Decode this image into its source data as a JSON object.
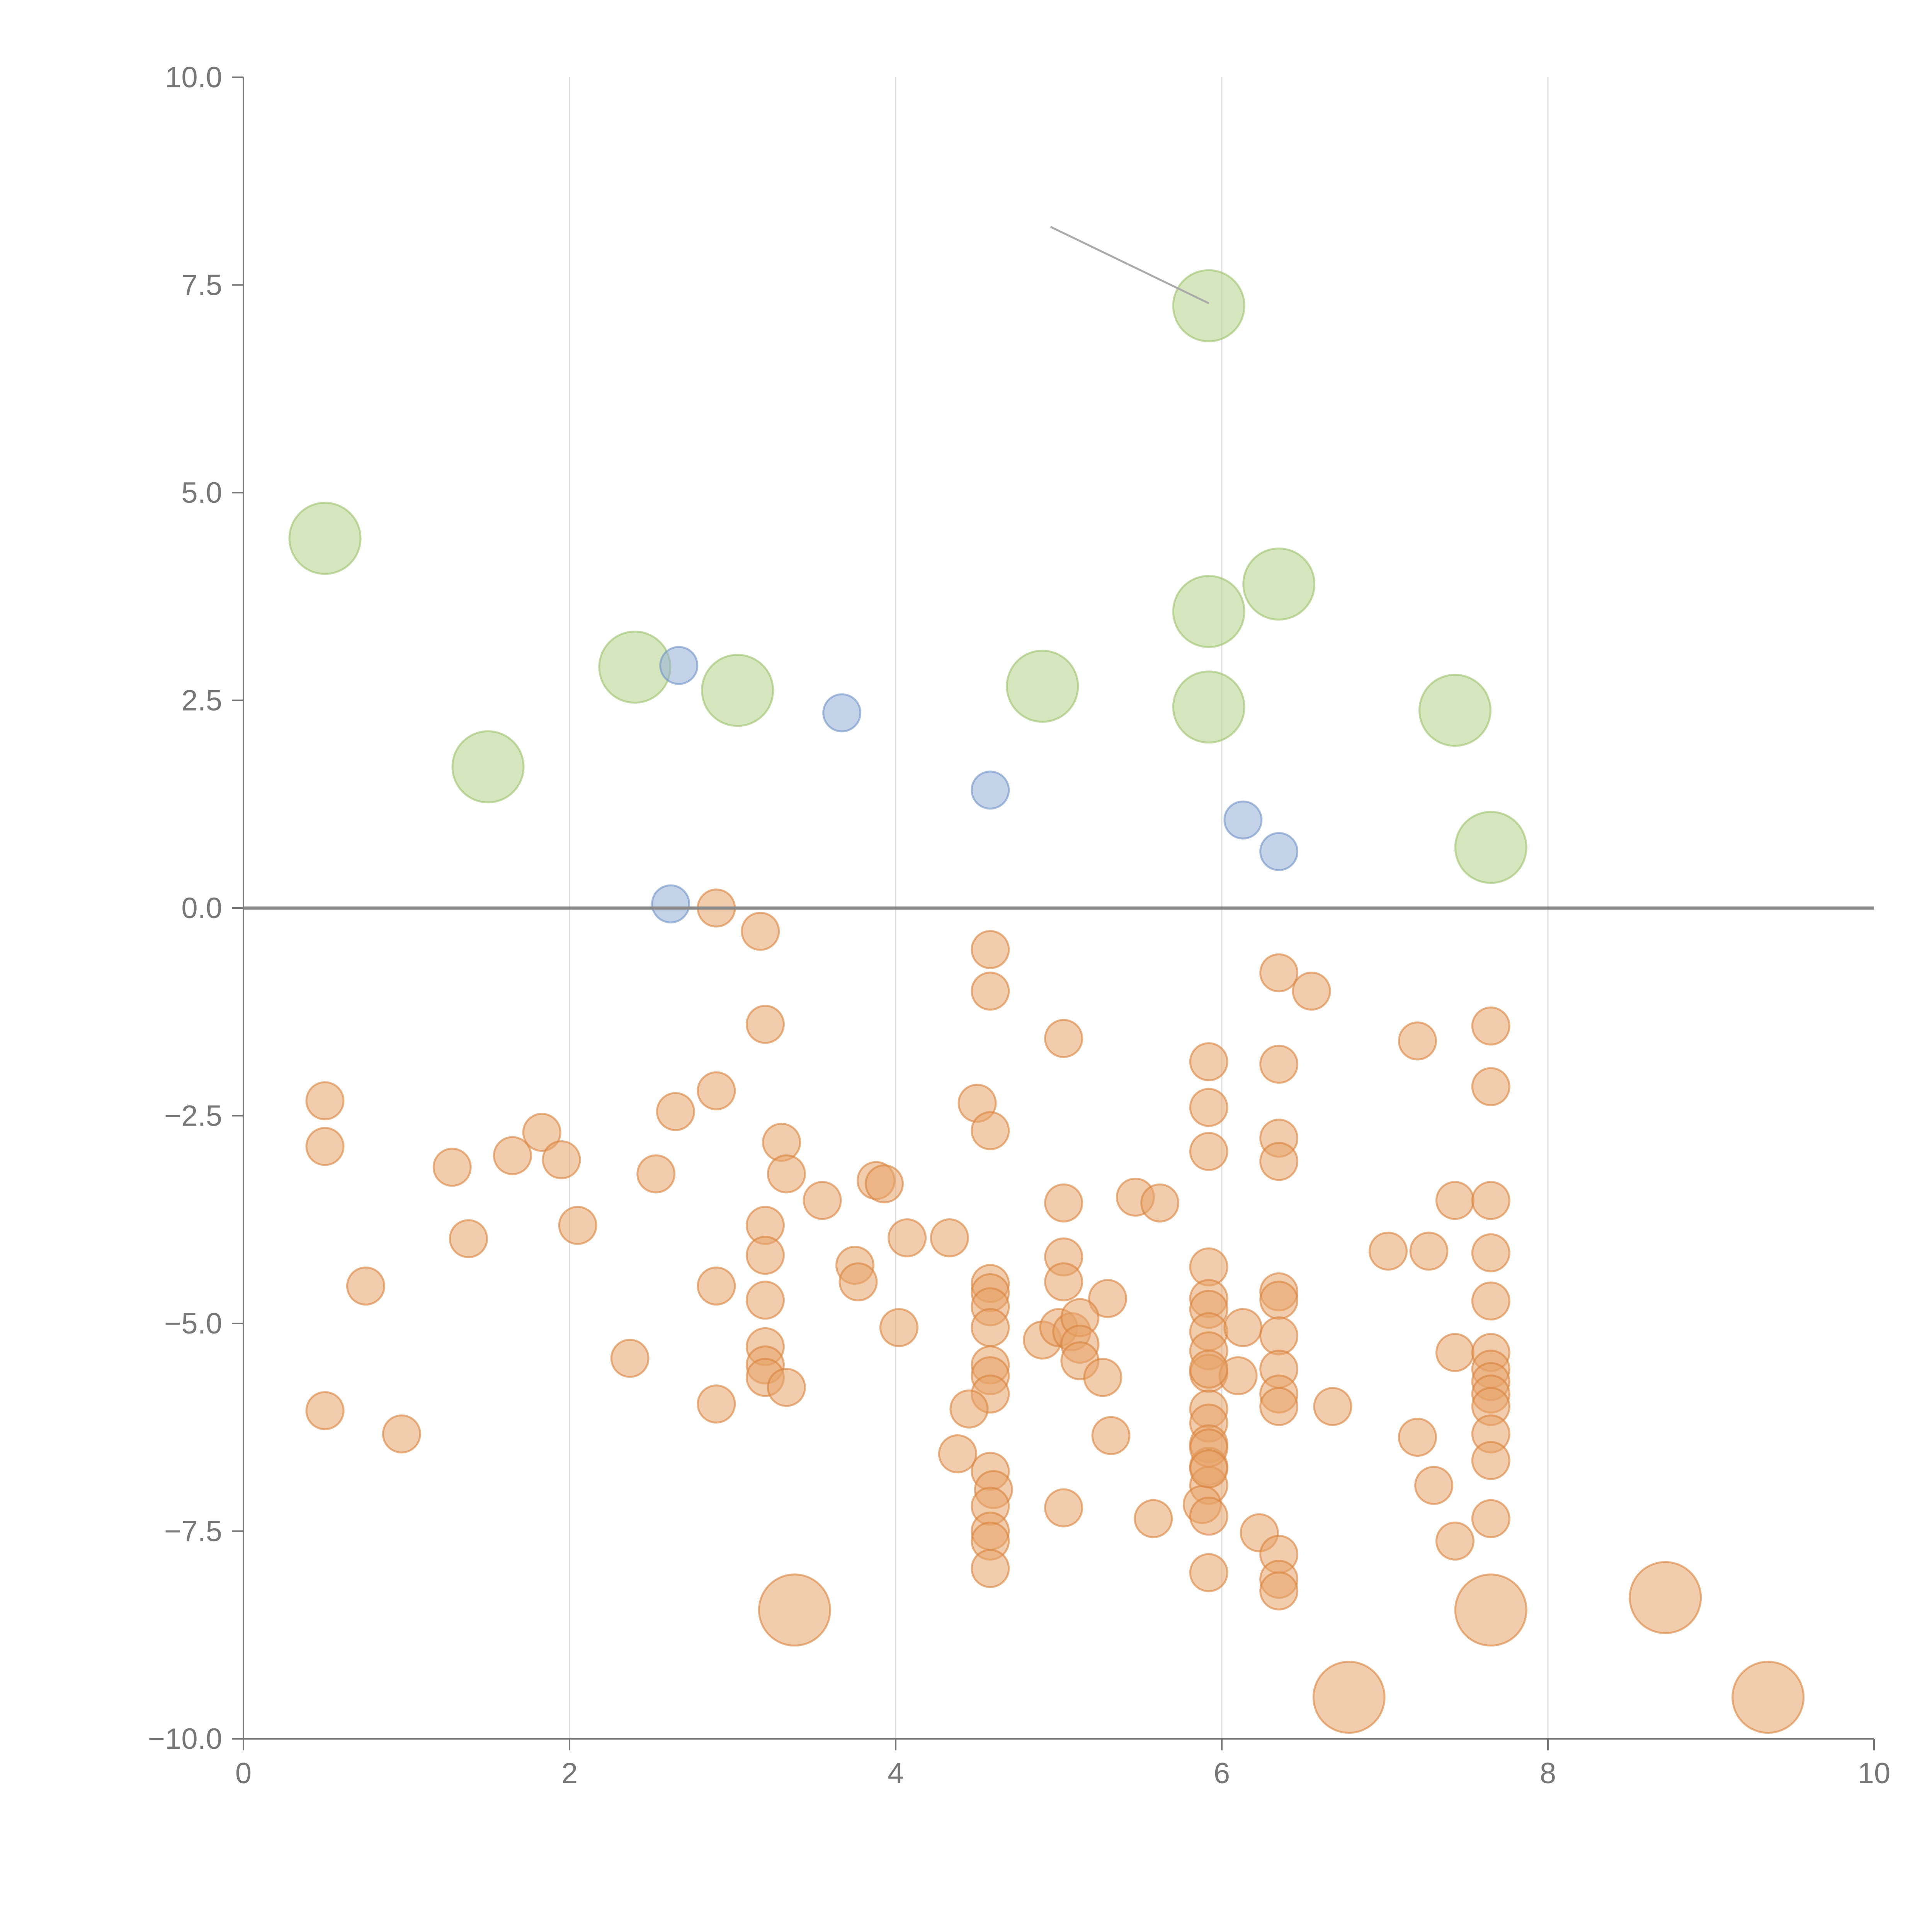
{
  "chart_data": {
    "type": "scatter",
    "title": "",
    "xlabel": "",
    "ylabel": "",
    "xlim": [
      0,
      10
    ],
    "ylim": [
      -10,
      10
    ],
    "x_ticks": [
      "0",
      "2",
      "4",
      "6",
      "8",
      "10"
    ],
    "y_ticks": [
      "10.0",
      "7.5",
      "5.0",
      "2.5",
      "0.0",
      "−2.5",
      "−5.0",
      "−7.5",
      "−10.0"
    ],
    "x_tick_values": [
      0,
      2,
      4,
      6,
      8,
      10
    ],
    "y_tick_values": [
      10,
      7.5,
      5,
      2.5,
      0,
      -2.5,
      -5,
      -7.5,
      -10
    ],
    "vertical_gridlines": [
      2,
      4,
      6,
      8
    ],
    "reference_line_y": 0,
    "colors": {
      "orange": "#e8a46a",
      "orange_stroke": "#d9823c",
      "green": "#b5d38c",
      "green_stroke": "#9cc16a",
      "blue": "#93aed6",
      "blue_stroke": "#6f93c6",
      "axis": "#777777",
      "grid": "#dddddd",
      "zero_line": "#888888"
    },
    "series": [
      {
        "name": "green-large",
        "color": "green",
        "size": "large",
        "points": [
          [
            0.5,
            4.45
          ],
          [
            1.5,
            1.7
          ],
          [
            2.4,
            2.9
          ],
          [
            3.03,
            2.62
          ],
          [
            4.9,
            2.67
          ],
          [
            5.92,
            7.25
          ],
          [
            5.92,
            3.57
          ],
          [
            5.92,
            2.42
          ],
          [
            6.35,
            3.9
          ],
          [
            7.43,
            2.38
          ],
          [
            7.65,
            0.73
          ]
        ]
      },
      {
        "name": "blue-small",
        "color": "blue",
        "size": "small",
        "points": [
          [
            2.62,
            0.05
          ],
          [
            2.67,
            2.92
          ],
          [
            3.67,
            2.35
          ],
          [
            4.58,
            1.42
          ],
          [
            6.13,
            1.06
          ],
          [
            6.35,
            0.68
          ]
        ]
      },
      {
        "name": "orange-large",
        "color": "orange",
        "size": "large",
        "points": [
          [
            3.38,
            -8.45
          ],
          [
            6.78,
            -9.5
          ],
          [
            7.65,
            -8.45
          ],
          [
            8.72,
            -8.3
          ],
          [
            9.35,
            -9.5
          ]
        ]
      },
      {
        "name": "orange-small",
        "color": "orange",
        "size": "small",
        "points": [
          [
            2.9,
            0.0
          ],
          [
            3.17,
            -0.28
          ],
          [
            4.58,
            -0.5
          ],
          [
            4.58,
            -1.0
          ],
          [
            3.2,
            -1.4
          ],
          [
            5.03,
            -1.57
          ],
          [
            6.35,
            -0.78
          ],
          [
            6.55,
            -1.0
          ],
          [
            7.2,
            -1.6
          ],
          [
            7.65,
            -1.42
          ],
          [
            5.92,
            -1.85
          ],
          [
            6.35,
            -1.88
          ],
          [
            7.65,
            -2.15
          ],
          [
            0.5,
            -2.32
          ],
          [
            0.5,
            -2.87
          ],
          [
            1.28,
            -3.12
          ],
          [
            1.65,
            -2.98
          ],
          [
            1.83,
            -2.7
          ],
          [
            1.95,
            -3.03
          ],
          [
            2.53,
            -3.2
          ],
          [
            2.65,
            -2.45
          ],
          [
            2.9,
            -2.2
          ],
          [
            3.3,
            -2.82
          ],
          [
            3.33,
            -3.2
          ],
          [
            3.55,
            -3.52
          ],
          [
            3.88,
            -3.28
          ],
          [
            3.93,
            -3.32
          ],
          [
            4.5,
            -2.35
          ],
          [
            4.58,
            -2.68
          ],
          [
            5.92,
            -2.4
          ],
          [
            5.92,
            -2.93
          ],
          [
            6.35,
            -2.77
          ],
          [
            6.35,
            -3.05
          ],
          [
            1.38,
            -3.98
          ],
          [
            2.05,
            -3.82
          ],
          [
            3.2,
            -3.82
          ],
          [
            3.2,
            -4.18
          ],
          [
            3.75,
            -4.3
          ],
          [
            3.77,
            -4.5
          ],
          [
            4.07,
            -3.97
          ],
          [
            4.33,
            -3.97
          ],
          [
            5.03,
            -3.55
          ],
          [
            5.47,
            -3.48
          ],
          [
            5.62,
            -3.55
          ],
          [
            7.02,
            -4.13
          ],
          [
            7.27,
            -4.13
          ],
          [
            7.43,
            -3.52
          ],
          [
            7.65,
            -3.52
          ],
          [
            7.65,
            -4.15
          ],
          [
            0.75,
            -4.55
          ],
          [
            2.9,
            -4.55
          ],
          [
            3.2,
            -4.72
          ],
          [
            4.58,
            -4.52
          ],
          [
            4.58,
            -4.63
          ],
          [
            4.58,
            -4.8
          ],
          [
            5.03,
            -4.2
          ],
          [
            5.03,
            -4.5
          ],
          [
            5.3,
            -4.7
          ],
          [
            5.92,
            -4.32
          ],
          [
            5.92,
            -4.7
          ],
          [
            5.92,
            -4.83
          ],
          [
            6.35,
            -4.62
          ],
          [
            6.35,
            -4.72
          ],
          [
            7.65,
            -4.73
          ],
          [
            4.02,
            -5.05
          ],
          [
            4.58,
            -5.05
          ],
          [
            4.9,
            -5.2
          ],
          [
            5.0,
            -5.05
          ],
          [
            5.08,
            -5.1
          ],
          [
            5.13,
            -4.93
          ],
          [
            5.13,
            -5.25
          ],
          [
            5.13,
            -5.45
          ],
          [
            5.27,
            -5.65
          ],
          [
            5.92,
            -5.1
          ],
          [
            5.92,
            -5.33
          ],
          [
            6.13,
            -5.05
          ],
          [
            6.35,
            -5.15
          ],
          [
            2.37,
            -5.42
          ],
          [
            3.2,
            -5.28
          ],
          [
            3.2,
            -5.5
          ],
          [
            3.2,
            -5.65
          ],
          [
            3.33,
            -5.77
          ],
          [
            4.58,
            -5.5
          ],
          [
            4.58,
            -5.63
          ],
          [
            4.58,
            -5.85
          ],
          [
            5.92,
            -5.6
          ],
          [
            6.1,
            -5.63
          ],
          [
            6.35,
            -5.55
          ],
          [
            6.35,
            -5.85
          ],
          [
            7.43,
            -5.35
          ],
          [
            7.65,
            -5.35
          ],
          [
            7.65,
            -5.55
          ],
          [
            7.65,
            -5.7
          ],
          [
            7.65,
            -5.85
          ],
          [
            0.5,
            -6.05
          ],
          [
            0.97,
            -6.33
          ],
          [
            2.9,
            -5.97
          ],
          [
            4.45,
            -6.03
          ],
          [
            4.38,
            -6.57
          ],
          [
            5.32,
            -6.35
          ],
          [
            5.92,
            -6.03
          ],
          [
            5.92,
            -6.2
          ],
          [
            5.92,
            -6.45
          ],
          [
            5.92,
            -6.72
          ],
          [
            5.92,
            -6.95
          ],
          [
            6.35,
            -6.0
          ],
          [
            6.68,
            -6.0
          ],
          [
            7.2,
            -6.37
          ],
          [
            7.65,
            -6.0
          ],
          [
            7.65,
            -6.33
          ],
          [
            7.65,
            -6.65
          ],
          [
            4.58,
            -6.78
          ],
          [
            4.6,
            -7.0
          ],
          [
            4.58,
            -7.2
          ],
          [
            5.03,
            -7.22
          ],
          [
            5.58,
            -7.35
          ],
          [
            5.88,
            -7.18
          ],
          [
            5.92,
            -7.32
          ],
          [
            6.23,
            -7.52
          ],
          [
            7.3,
            -6.95
          ],
          [
            7.43,
            -7.62
          ],
          [
            7.65,
            -7.35
          ],
          [
            4.58,
            -7.5
          ],
          [
            4.58,
            -7.62
          ],
          [
            4.58,
            -7.95
          ],
          [
            5.92,
            -8.0
          ],
          [
            6.35,
            -7.78
          ],
          [
            6.35,
            -8.08
          ],
          [
            6.35,
            -8.22
          ],
          [
            5.92,
            -5.55
          ],
          [
            5.92,
            -6.5
          ],
          [
            5.92,
            -6.75
          ]
        ]
      }
    ],
    "annotations": [
      {
        "text": "",
        "x": 4.95,
        "y": 8.2,
        "target_x": 5.92,
        "target_y": 7.28,
        "color": "gray"
      }
    ]
  }
}
